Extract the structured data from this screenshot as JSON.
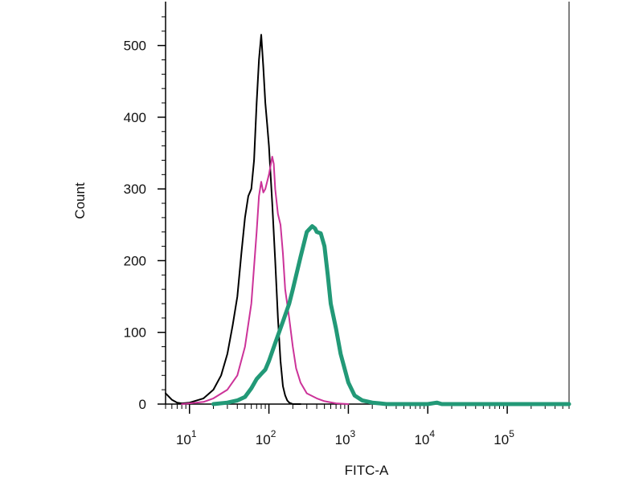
{
  "chart_data": {
    "type": "line",
    "xlabel": "FITC-A",
    "ylabel": "Count",
    "x_scale": "log",
    "xlim": [
      5,
      600000
    ],
    "ylim": [
      0,
      550
    ],
    "x_ticks": [
      {
        "base": "10",
        "exp": "1",
        "value": 10
      },
      {
        "base": "10",
        "exp": "2",
        "value": 100
      },
      {
        "base": "10",
        "exp": "3",
        "value": 1000
      },
      {
        "base": "10",
        "exp": "4",
        "value": 10000
      },
      {
        "base": "10",
        "exp": "5",
        "value": 100000
      }
    ],
    "y_ticks": [
      "0",
      "100",
      "200",
      "300",
      "400",
      "500"
    ],
    "grid": false,
    "legend": false,
    "series": [
      {
        "color": "#000000",
        "stroke": 2,
        "x": [
          5,
          6,
          7,
          8,
          10,
          15,
          20,
          25,
          30,
          35,
          40,
          45,
          50,
          55,
          60,
          65,
          70,
          75,
          80,
          85,
          90,
          95,
          100,
          110,
          120,
          130,
          140,
          150,
          160,
          170,
          180,
          200,
          250
        ],
        "y": [
          15,
          6,
          2,
          1,
          2,
          8,
          20,
          40,
          70,
          110,
          150,
          210,
          260,
          290,
          300,
          340,
          420,
          480,
          515,
          470,
          420,
          390,
          360,
          280,
          200,
          120,
          60,
          25,
          12,
          5,
          2,
          0,
          0
        ]
      },
      {
        "color": "#cc3399",
        "stroke": 2,
        "x": [
          8,
          10,
          15,
          20,
          30,
          40,
          50,
          60,
          70,
          75,
          80,
          85,
          90,
          100,
          110,
          115,
          120,
          130,
          140,
          150,
          160,
          180,
          200,
          220,
          250,
          300,
          400,
          500,
          700,
          1000
        ],
        "y": [
          0,
          1,
          3,
          8,
          20,
          40,
          80,
          140,
          240,
          290,
          310,
          295,
          300,
          320,
          345,
          335,
          300,
          265,
          250,
          210,
          160,
          120,
          80,
          50,
          30,
          15,
          8,
          4,
          1,
          0
        ]
      },
      {
        "color": "#229977",
        "stroke": 5,
        "x": [
          20,
          30,
          40,
          50,
          60,
          70,
          80,
          90,
          100,
          120,
          150,
          180,
          200,
          250,
          300,
          350,
          380,
          400,
          450,
          500,
          550,
          600,
          700,
          800,
          1000,
          1200,
          1500,
          2000,
          2500,
          3000,
          4000,
          5000,
          10000,
          13000,
          15000,
          20000,
          50000,
          100000,
          600000
        ],
        "y": [
          0,
          2,
          5,
          10,
          22,
          35,
          42,
          48,
          60,
          85,
          115,
          140,
          160,
          205,
          240,
          248,
          245,
          240,
          238,
          220,
          180,
          140,
          105,
          70,
          30,
          12,
          5,
          2,
          1,
          0,
          0,
          0,
          0,
          2,
          0,
          0,
          0,
          0,
          0
        ]
      }
    ]
  }
}
